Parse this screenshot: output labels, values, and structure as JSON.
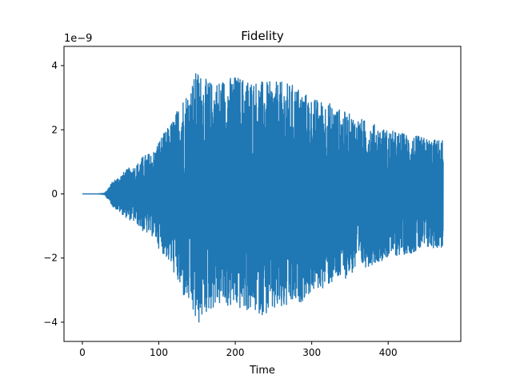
{
  "chart_data": {
    "type": "line",
    "title": "Fidelity",
    "xlabel": "Time",
    "ylabel": "",
    "y_offset_label": "1e−9",
    "y_multiplier": 1e-09,
    "xlim": [
      -24,
      495
    ],
    "ylim": [
      -4.6,
      4.6
    ],
    "xticks": [
      0,
      100,
      200,
      300,
      400
    ],
    "xtick_labels": [
      "0",
      "100",
      "200",
      "300",
      "400"
    ],
    "yticks": [
      -4,
      -2,
      0,
      2,
      4
    ],
    "ytick_labels": [
      "−4",
      "−2",
      "0",
      "2",
      "4"
    ],
    "grid": false,
    "line_color": "#1f77b4",
    "series": [
      {
        "x_range": [
          0,
          472
        ],
        "envelope_x": [
          0,
          20,
          28,
          30,
          40,
          50,
          60,
          70,
          80,
          90,
          95,
          100,
          110,
          120,
          130,
          140,
          150,
          160,
          170,
          180,
          200,
          220,
          240,
          260,
          280,
          300,
          320,
          340,
          360,
          380,
          400,
          420,
          440,
          460,
          472
        ],
        "envelope_upper": [
          0,
          0,
          0.02,
          0.05,
          0.4,
          0.6,
          0.8,
          0.9,
          1.2,
          1.3,
          1.4,
          1.7,
          2.0,
          2.4,
          3.0,
          3.3,
          3.9,
          3.6,
          3.5,
          3.6,
          3.7,
          3.6,
          3.5,
          3.5,
          3.4,
          3.0,
          2.9,
          2.6,
          2.4,
          2.2,
          2.0,
          1.9,
          1.8,
          1.7,
          1.7
        ],
        "envelope_lower": [
          0,
          0,
          -0.02,
          -0.05,
          -0.4,
          -0.6,
          -0.8,
          -0.9,
          -1.2,
          -1.3,
          -1.4,
          -1.7,
          -2.0,
          -2.5,
          -3.2,
          -3.5,
          -4.2,
          -3.8,
          -3.6,
          -3.5,
          -3.6,
          -3.7,
          -3.8,
          -3.7,
          -3.5,
          -3.1,
          -2.9,
          -2.7,
          -2.4,
          -2.2,
          -2.0,
          -1.9,
          -1.8,
          -1.7,
          -1.7
        ]
      }
    ]
  }
}
